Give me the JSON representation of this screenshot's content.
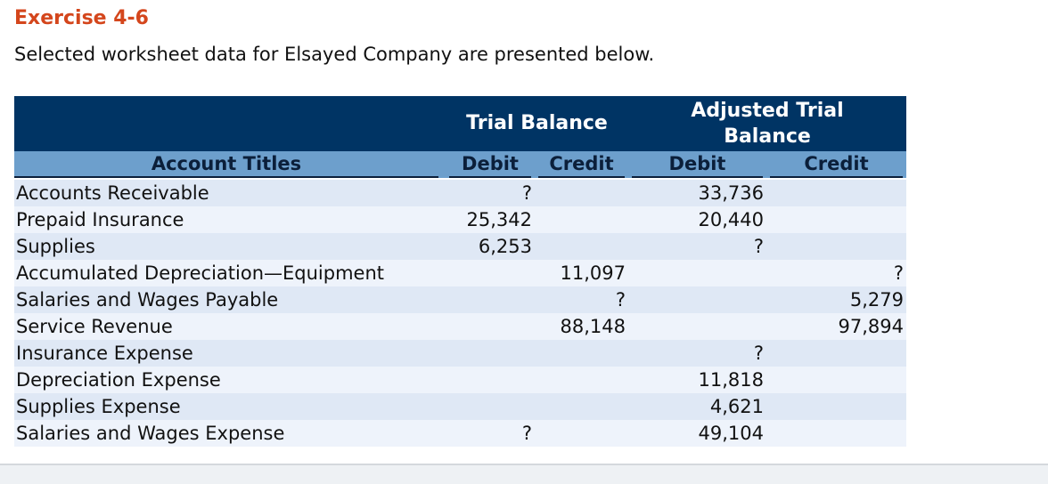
{
  "header": {
    "title": "Exercise 4-6",
    "subtitle": "Selected worksheet data for Elsayed Company are presented below."
  },
  "table": {
    "group_headers": [
      "Trial Balance",
      "Adjusted Trial Balance"
    ],
    "columns": [
      "Account Titles",
      "Debit",
      "Credit",
      "Debit",
      "Credit"
    ],
    "rows": [
      [
        "Accounts Receivable",
        "?",
        null,
        "33,736",
        null
      ],
      [
        "Prepaid Insurance",
        "25,342",
        null,
        "20,440",
        null
      ],
      [
        "Supplies",
        "6,253",
        null,
        "?",
        null
      ],
      [
        "Accumulated Depreciation—Equipment",
        null,
        "11,097",
        null,
        "?"
      ],
      [
        "Salaries and Wages Payable",
        null,
        "?",
        null,
        "5,279"
      ],
      [
        "Service Revenue",
        null,
        "88,148",
        null,
        "97,894"
      ],
      [
        "Insurance Expense",
        null,
        null,
        "?",
        null
      ],
      [
        "Depreciation Expense",
        null,
        null,
        "11,818",
        null
      ],
      [
        "Supplies Expense",
        null,
        null,
        "4,621",
        null
      ],
      [
        "Salaries and Wages Expense",
        "?",
        null,
        "49,104",
        null
      ]
    ]
  }
}
